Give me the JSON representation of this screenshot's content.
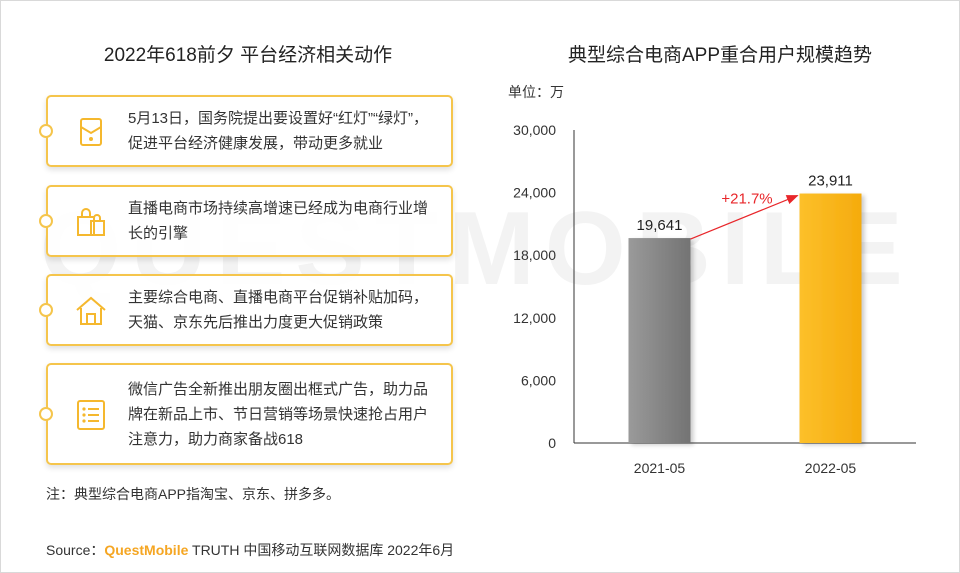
{
  "left": {
    "title": "2022年618前夕 平台经济相关动作",
    "cards": [
      {
        "icon": "envelope-icon",
        "text": "5月13日，国务院提出要设置好“红灯”“绿灯”，促进平台经济健康发展，带动更多就业"
      },
      {
        "icon": "shopping-bag-icon",
        "text": "直播电商市场持续高增速已经成为电商行业增长的引擎"
      },
      {
        "icon": "house-icon",
        "text": "主要综合电商、直播电商平台促销补贴加码，天猫、京东先后推出力度更大促销政策"
      },
      {
        "icon": "list-icon",
        "text": "微信广告全新推出朋友圈出框式广告，助力品牌在新品上市、节日营销等场景快速抢占用户注意力，助力商家备战618"
      }
    ],
    "note": "注：典型综合电商APP指淘宝、京东、拼多多。"
  },
  "watermark": "QUESTMOBILE",
  "source": {
    "prefix": "Source：",
    "brand": "QuestMobile",
    "suffix": " TRUTH 中国移动互联网数据库 2022年6月"
  },
  "chart_data": {
    "type": "bar",
    "title": "典型综合电商APP重合用户规模趋势",
    "unit_label": "单位：万",
    "categories": [
      "2021-05",
      "2022-05"
    ],
    "values": [
      19641,
      23911
    ],
    "value_labels": [
      "19,641",
      "23,911"
    ],
    "yticks": [
      "0",
      "6,000",
      "12,000",
      "18,000",
      "24,000",
      "30,000"
    ],
    "ylim": [
      0,
      30000
    ],
    "growth_label": "+21.7%",
    "colors": {
      "bar1": "#8c8c8c",
      "bar2": "#fbb81c",
      "growth": "#e8262a"
    },
    "grid": false
  }
}
